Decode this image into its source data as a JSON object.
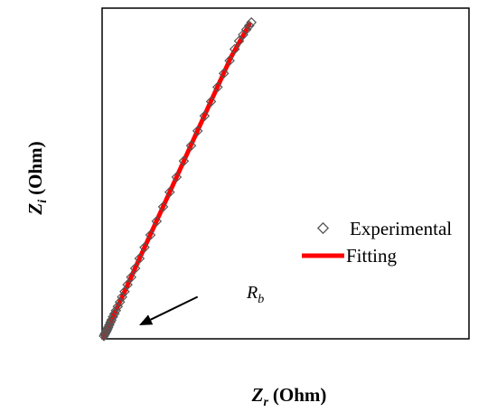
{
  "chart_data": {
    "type": "scatter",
    "xlabel": "Z",
    "xlabel_sub": "r",
    "xlabel_unit": "(Ohm)",
    "ylabel": "Z",
    "ylabel_sub": "i",
    "ylabel_unit": "(Ohm)",
    "xlim": [
      0,
      1
    ],
    "ylim": [
      0,
      1
    ],
    "grid": false,
    "legend_position": "right",
    "ticks": "none",
    "series": [
      {
        "name": "Experimental",
        "kind": "marker",
        "marker": "diamond-open",
        "color": "#555555",
        "points": [
          {
            "x": 0.0,
            "y": 0.003
          },
          {
            "x": 0.002,
            "y": 0.008
          },
          {
            "x": 0.004,
            "y": 0.012
          },
          {
            "x": 0.006,
            "y": 0.016
          },
          {
            "x": 0.008,
            "y": 0.02
          },
          {
            "x": 0.01,
            "y": 0.025
          },
          {
            "x": 0.012,
            "y": 0.03
          },
          {
            "x": 0.015,
            "y": 0.037
          },
          {
            "x": 0.018,
            "y": 0.045
          },
          {
            "x": 0.021,
            "y": 0.052
          },
          {
            "x": 0.025,
            "y": 0.062
          },
          {
            "x": 0.029,
            "y": 0.071
          },
          {
            "x": 0.033,
            "y": 0.081
          },
          {
            "x": 0.038,
            "y": 0.093
          },
          {
            "x": 0.044,
            "y": 0.107
          },
          {
            "x": 0.05,
            "y": 0.122
          },
          {
            "x": 0.057,
            "y": 0.139
          },
          {
            "x": 0.065,
            "y": 0.16
          },
          {
            "x": 0.075,
            "y": 0.183
          },
          {
            "x": 0.086,
            "y": 0.21
          },
          {
            "x": 0.098,
            "y": 0.24
          },
          {
            "x": 0.112,
            "y": 0.274
          },
          {
            "x": 0.128,
            "y": 0.312
          },
          {
            "x": 0.145,
            "y": 0.354
          },
          {
            "x": 0.163,
            "y": 0.398
          },
          {
            "x": 0.181,
            "y": 0.443
          },
          {
            "x": 0.2,
            "y": 0.489
          },
          {
            "x": 0.22,
            "y": 0.538
          },
          {
            "x": 0.24,
            "y": 0.585
          },
          {
            "x": 0.258,
            "y": 0.63
          },
          {
            "x": 0.277,
            "y": 0.676
          },
          {
            "x": 0.295,
            "y": 0.72
          },
          {
            "x": 0.313,
            "y": 0.764
          },
          {
            "x": 0.33,
            "y": 0.806
          },
          {
            "x": 0.346,
            "y": 0.845
          },
          {
            "x": 0.36,
            "y": 0.88
          },
          {
            "x": 0.372,
            "y": 0.905
          },
          {
            "x": 0.383,
            "y": 0.924
          },
          {
            "x": 0.392,
            "y": 0.94
          },
          {
            "x": 0.4,
            "y": 0.952
          },
          {
            "x": 0.406,
            "y": 0.962
          }
        ]
      },
      {
        "name": "Fitting",
        "kind": "line",
        "color": "#ff0000",
        "points": [
          {
            "x": 0.0,
            "y": 0.0
          },
          {
            "x": 0.01,
            "y": 0.025
          },
          {
            "x": 0.02,
            "y": 0.05
          },
          {
            "x": 0.05,
            "y": 0.122
          },
          {
            "x": 0.1,
            "y": 0.245
          },
          {
            "x": 0.15,
            "y": 0.367
          },
          {
            "x": 0.2,
            "y": 0.489
          },
          {
            "x": 0.25,
            "y": 0.612
          },
          {
            "x": 0.3,
            "y": 0.734
          },
          {
            "x": 0.35,
            "y": 0.856
          },
          {
            "x": 0.4,
            "y": 0.955
          }
        ]
      }
    ],
    "annotations": [
      {
        "text": "R",
        "text_sub": "b",
        "arrow_from": {
          "x": 0.258,
          "y": 0.123
        },
        "arrow_to": {
          "x": 0.097,
          "y": 0.036
        }
      }
    ]
  }
}
